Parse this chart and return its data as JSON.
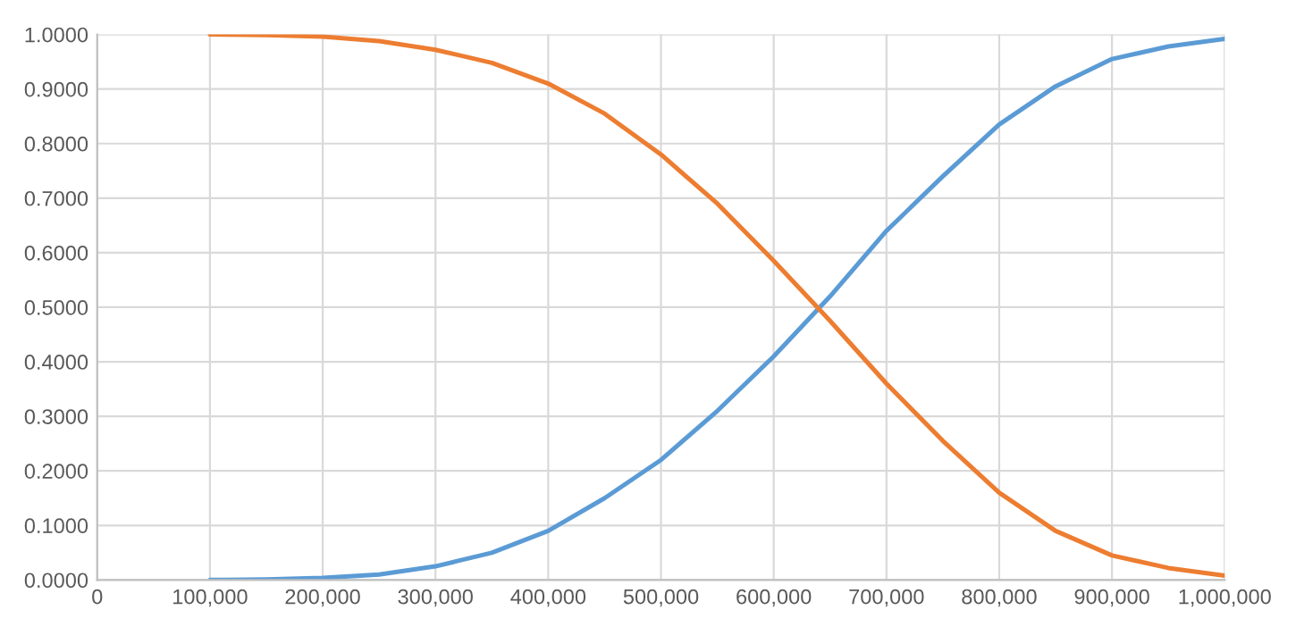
{
  "chart_data": {
    "type": "line",
    "grid": true,
    "x": [
      100000,
      150000,
      200000,
      250000,
      300000,
      350000,
      400000,
      450000,
      500000,
      550000,
      600000,
      650000,
      700000,
      750000,
      800000,
      850000,
      900000,
      950000,
      1000000
    ],
    "series": [
      {
        "color": "#5b9bd5",
        "values": [
          0.0,
          0.001,
          0.004,
          0.01,
          0.025,
          0.05,
          0.09,
          0.15,
          0.22,
          0.31,
          0.41,
          0.52,
          0.64,
          0.74,
          0.835,
          0.905,
          0.955,
          0.978,
          0.992
        ]
      },
      {
        "color": "#ed7d31",
        "values": [
          1.0,
          0.999,
          0.996,
          0.988,
          0.972,
          0.948,
          0.91,
          0.855,
          0.78,
          0.69,
          0.585,
          0.475,
          0.36,
          0.255,
          0.16,
          0.09,
          0.045,
          0.022,
          0.008
        ]
      }
    ],
    "xlim": [
      0,
      1000000
    ],
    "xticks": [
      0,
      {
        "value": 100000,
        "label": "100,000"
      },
      {
        "value": 200000,
        "label": "200,000"
      },
      {
        "value": 300000,
        "label": "300,000"
      },
      {
        "value": 400000,
        "label": "400,000"
      },
      {
        "value": 500000,
        "label": "500,000"
      },
      {
        "value": 600000,
        "label": "600,000"
      },
      {
        "value": 700000,
        "label": "700,000"
      },
      {
        "value": 800000,
        "label": "800,000"
      },
      {
        "value": 900000,
        "label": "900,000"
      },
      {
        "value": 1000000,
        "label": "1,000,000"
      }
    ],
    "ylim": [
      0,
      1
    ],
    "yticks": [
      {
        "value": 0,
        "label": "0.0000"
      },
      {
        "value": 0.1,
        "label": "0.1000"
      },
      {
        "value": 0.2,
        "label": "0.2000"
      },
      {
        "value": 0.3,
        "label": "0.3000"
      },
      {
        "value": 0.4,
        "label": "0.4000"
      },
      {
        "value": 0.5,
        "label": "0.5000"
      },
      {
        "value": 0.6,
        "label": "0.6000"
      },
      {
        "value": 0.7,
        "label": "0.7000"
      },
      {
        "value": 0.8,
        "label": "0.8000"
      },
      {
        "value": 0.9,
        "label": "0.9000"
      },
      {
        "value": 1,
        "label": "1.0000"
      }
    ]
  }
}
